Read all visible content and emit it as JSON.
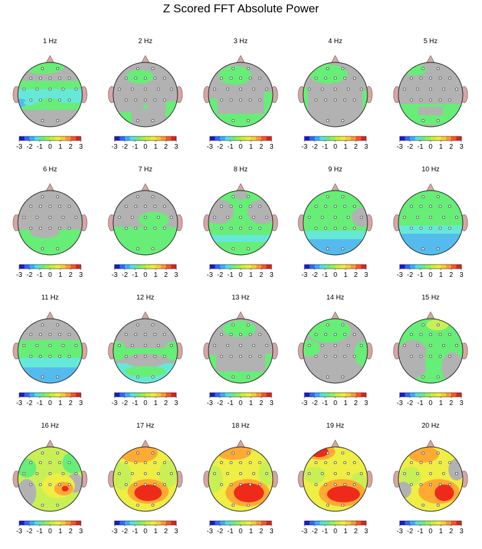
{
  "title": "Z Scored FFT Absolute Power",
  "colorbar": {
    "ticks": [
      "-3",
      "-2",
      "-1",
      "0",
      "1",
      "2",
      "3"
    ],
    "colors": [
      "#1a1acc",
      "#3366ff",
      "#33b0ff",
      "#55e0e0",
      "#66ee88",
      "#99f055",
      "#ccf033",
      "#eef033",
      "#ffcc33",
      "#ff9933",
      "#ff5522",
      "#dd2222"
    ]
  },
  "palette": {
    "neutral": "#b2b2b2",
    "green": "#66ee77",
    "cyan": "#66e8d8",
    "lightblue": "#55bbee",
    "yellowgreen": "#c8f055",
    "yellow": "#eeee44",
    "orange": "#ffaa33",
    "red": "#ee2b1b",
    "ear": "#d9a5a5",
    "nose": "#d9a5a5"
  },
  "maps": [
    {
      "label": "1 Hz"
    },
    {
      "label": "2 Hz"
    },
    {
      "label": "3 Hz"
    },
    {
      "label": "4 Hz"
    },
    {
      "label": "5 Hz"
    },
    {
      "label": "6 Hz"
    },
    {
      "label": "7 Hz"
    },
    {
      "label": "8 Hz"
    },
    {
      "label": "9 Hz"
    },
    {
      "label": "10 Hz"
    },
    {
      "label": "11 Hz"
    },
    {
      "label": "12 Hz"
    },
    {
      "label": "13 Hz"
    },
    {
      "label": "14 Hz"
    },
    {
      "label": "15 Hz"
    },
    {
      "label": "16 Hz"
    },
    {
      "label": "17 Hz"
    },
    {
      "label": "18 Hz"
    },
    {
      "label": "19 Hz"
    },
    {
      "label": "20 Hz"
    }
  ]
}
